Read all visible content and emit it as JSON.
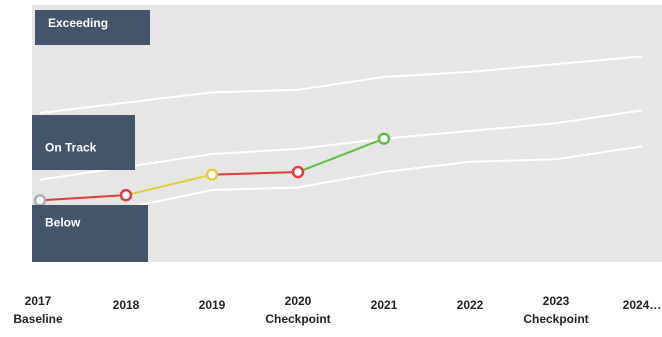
{
  "chart_data": {
    "type": "line",
    "categories": [
      "2017",
      "2018",
      "2019",
      "2020",
      "2021",
      "2022",
      "2023",
      "2024…"
    ],
    "sublabels": [
      "Baseline",
      null,
      null,
      "Checkpoint",
      null,
      null,
      "Checkpoint",
      null
    ],
    "ylim": [
      0,
      100
    ],
    "bands": [
      {
        "label": "Exceeding"
      },
      {
        "label": "On Track"
      },
      {
        "label": "Below"
      }
    ],
    "series": [
      {
        "color": "#ffffff",
        "values": [
          58,
          62,
          66,
          67,
          72,
          74,
          77,
          80
        ]
      },
      {
        "color": "#ffffff",
        "values": [
          32,
          37,
          42,
          44,
          48,
          51,
          54,
          59
        ]
      },
      {
        "color": "#ffffff",
        "values": [
          16,
          21,
          28,
          29,
          35,
          39,
          40,
          45
        ]
      },
      {
        "values": [
          24,
          26,
          34,
          35,
          48,
          null,
          null,
          null
        ],
        "point_colors": [
          "#b0b0b0",
          "#e03c3c",
          "#e0d040",
          "#e03c3c",
          "#5cc040",
          null,
          null,
          null
        ]
      }
    ]
  }
}
